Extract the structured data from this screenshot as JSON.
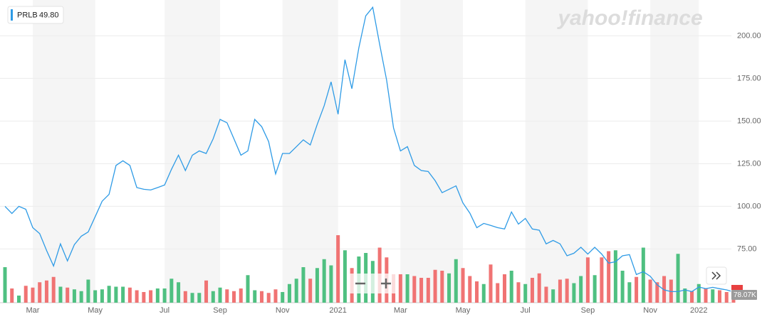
{
  "chart_data": {
    "type": "line",
    "logo": "yahoo!finance",
    "categories": [
      null,
      null,
      null,
      null,
      "Mar",
      null,
      null,
      null,
      null,
      null,
      null,
      null,
      null,
      "May",
      null,
      null,
      null,
      null,
      null,
      null,
      null,
      null,
      null,
      "Jul",
      null,
      null,
      null,
      null,
      null,
      null,
      null,
      "Sep",
      null,
      null,
      null,
      null,
      null,
      null,
      null,
      null,
      "Nov",
      null,
      null,
      null,
      null,
      null,
      null,
      null,
      "2021",
      null,
      null,
      null,
      null,
      null,
      null,
      null,
      null,
      "Mar",
      null,
      null,
      null,
      null,
      null,
      null,
      null,
      null,
      "May",
      null,
      null,
      null,
      null,
      null,
      null,
      null,
      null,
      "Jul",
      null,
      null,
      null,
      null,
      null,
      null,
      null,
      null,
      "Sep",
      null,
      null,
      null,
      null,
      null,
      null,
      null,
      null,
      "Nov",
      null,
      null,
      null,
      null,
      null,
      null,
      "2022",
      null,
      null,
      null,
      null,
      null
    ],
    "series": [
      {
        "name": "PRLB",
        "color": "#2e9be6",
        "values": [
          100,
          95.8,
          100,
          98.3,
          87.5,
          84,
          74,
          65,
          78,
          68,
          77.5,
          82.5,
          85,
          94,
          103,
          107,
          124,
          126.7,
          124,
          111,
          110,
          109.6,
          111,
          112.5,
          121.7,
          130,
          121,
          130,
          132.5,
          131,
          139.6,
          151,
          149,
          139.6,
          130,
          132.5,
          151,
          146.7,
          138,
          119,
          131,
          131,
          135,
          139,
          136,
          148,
          159,
          173,
          154,
          186,
          169,
          193,
          211.7,
          216.7,
          195,
          174,
          146,
          132.5,
          135,
          124,
          121,
          120.4,
          115,
          108,
          110,
          112,
          102,
          96,
          87.5,
          90,
          88.8,
          87.5,
          86.7,
          96.7,
          89.6,
          92.9,
          86.7,
          86,
          78,
          80,
          78,
          71,
          72.5,
          76,
          72,
          76,
          72,
          66.7,
          67.5,
          71,
          71.7,
          60,
          61.7,
          59,
          54,
          51,
          50,
          50,
          51,
          50,
          52.7,
          51.7,
          52.5,
          51.7,
          51,
          49.8
        ],
        "last_label": "49.80"
      }
    ],
    "volume": {
      "up_color": "#4fc081",
      "down_color": "#f07373",
      "vlim": [
        0,
        800
      ],
      "values": [
        400,
        160,
        80,
        190,
        170,
        230,
        250,
        290,
        180,
        170,
        150,
        130,
        260,
        140,
        150,
        190,
        180,
        180,
        170,
        140,
        120,
        140,
        160,
        160,
        270,
        230,
        130,
        110,
        110,
        250,
        130,
        170,
        150,
        130,
        160,
        310,
        140,
        130,
        110,
        150,
        120,
        210,
        270,
        400,
        270,
        390,
        490,
        420,
        760,
        590,
        390,
        520,
        560,
        470,
        620,
        510,
        320,
        320,
        320,
        300,
        280,
        280,
        370,
        360,
        330,
        490,
        390,
        300,
        240,
        210,
        430,
        220,
        320,
        360,
        230,
        210,
        280,
        330,
        180,
        150,
        260,
        270,
        220,
        300,
        510,
        310,
        510,
        580,
        590,
        360,
        230,
        290,
        620,
        260,
        230,
        300,
        260,
        550,
        160,
        130,
        210,
        160,
        150,
        140,
        120,
        78.07
      ],
      "last_label": "78.07K"
    },
    "ylim": [
      43,
      221
    ],
    "yticks": [
      {
        "value": 75,
        "label": "75.00"
      },
      {
        "value": 100,
        "label": "100.00"
      },
      {
        "value": 125,
        "label": "125.00"
      },
      {
        "value": 150,
        "label": "150.00"
      },
      {
        "value": 175,
        "label": "175.00"
      },
      {
        "value": 200,
        "label": "200.00"
      }
    ],
    "grid": true,
    "stripes": true
  }
}
